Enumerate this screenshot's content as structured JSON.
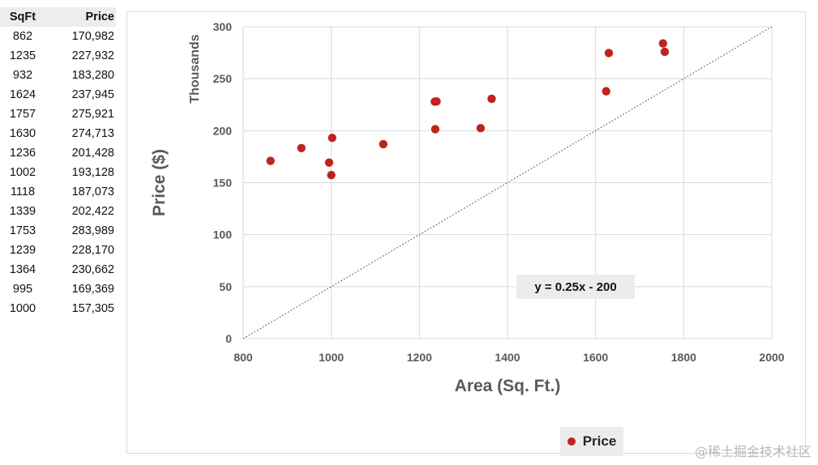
{
  "table": {
    "headers": [
      "SqFt",
      "Price"
    ],
    "rows": [
      [
        "862",
        "170,982"
      ],
      [
        "1235",
        "227,932"
      ],
      [
        "932",
        "183,280"
      ],
      [
        "1624",
        "237,945"
      ],
      [
        "1757",
        "275,921"
      ],
      [
        "1630",
        "274,713"
      ],
      [
        "1236",
        "201,428"
      ],
      [
        "1002",
        "193,128"
      ],
      [
        "1118",
        "187,073"
      ],
      [
        "1339",
        "202,422"
      ],
      [
        "1753",
        "283,989"
      ],
      [
        "1239",
        "228,170"
      ],
      [
        "1364",
        "230,662"
      ],
      [
        "995",
        "169,369"
      ],
      [
        "1000",
        "157,305"
      ]
    ]
  },
  "chart_data": {
    "type": "scatter",
    "title": "",
    "xlabel": "Area (Sq. Ft.)",
    "ylabel": "Price ($)",
    "y_units_label": "Thousands",
    "xlim": [
      800,
      2000
    ],
    "ylim": [
      0,
      300
    ],
    "x_ticks": [
      800,
      1000,
      1200,
      1400,
      1600,
      1800,
      2000
    ],
    "y_ticks": [
      0,
      50,
      100,
      150,
      200,
      250,
      300
    ],
    "grid": true,
    "legend_position": "bottom",
    "series": [
      {
        "name": "Price",
        "color": "#c0231e",
        "x": [
          862,
          1235,
          932,
          1624,
          1757,
          1630,
          1236,
          1002,
          1118,
          1339,
          1753,
          1239,
          1364,
          995,
          1000
        ],
        "y": [
          170.982,
          227.932,
          183.28,
          237.945,
          275.921,
          274.713,
          201.428,
          193.128,
          187.073,
          202.422,
          283.989,
          228.17,
          230.662,
          169.369,
          157.305
        ]
      }
    ],
    "trendline": {
      "label": "y = 0.25x - 200",
      "slope": 0.25,
      "intercept": -200,
      "style": "dotted",
      "color": "#595959"
    }
  },
  "watermark": "@稀土掘金技术社区"
}
